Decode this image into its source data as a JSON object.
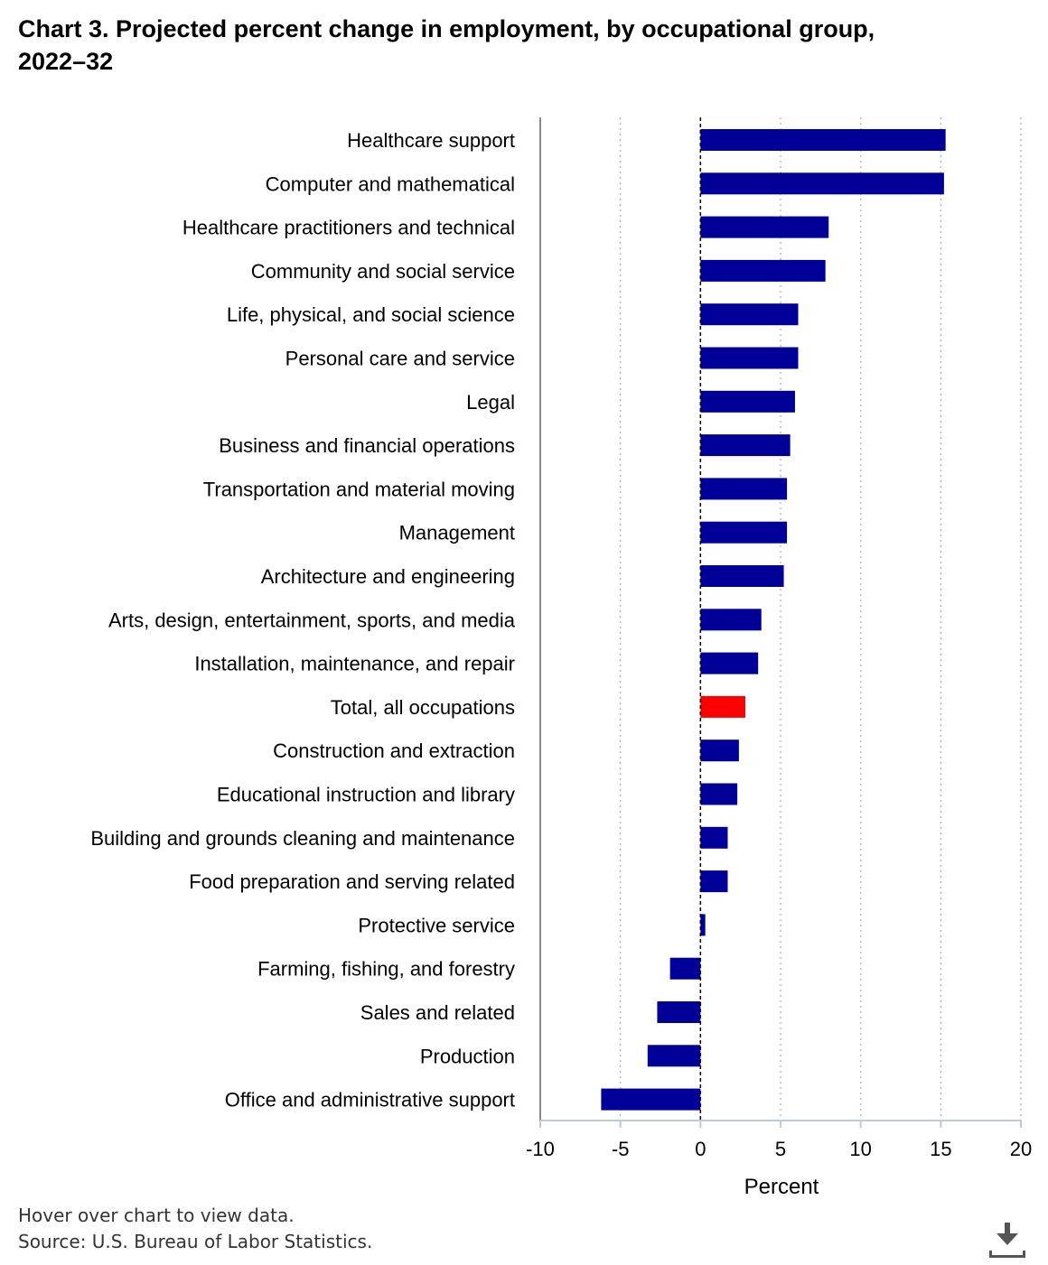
{
  "page": {
    "title": "Chart 3. Projected percent change in employment, by occupational group, 2022–32",
    "hover_note": "Hover over chart to view data.",
    "source_note": "Source: U.S. Bureau of Labor Statistics.",
    "download_icon": "download-icon"
  },
  "colors": {
    "bar": "#000099",
    "highlight": "#ff0000",
    "grid": "#bbbbbb",
    "axis": "#888888",
    "zero_line": "#000000"
  },
  "chart_data": {
    "type": "bar",
    "orientation": "horizontal",
    "title": "Chart 3. Projected percent change in employment, by occupational group, 2022–32",
    "xlabel": "Percent",
    "ylabel": "",
    "xlim": [
      -10,
      20
    ],
    "xticks": [
      -10,
      -5,
      0,
      5,
      10,
      15,
      20
    ],
    "grid": "vertical dotted",
    "highlight_category": "Total, all occupations",
    "categories": [
      "Healthcare support",
      "Computer and mathematical",
      "Healthcare practitioners and technical",
      "Community and social service",
      "Life, physical, and social science",
      "Personal care and service",
      "Legal",
      "Business and financial operations",
      "Transportation and material moving",
      "Management",
      "Architecture and engineering",
      "Arts, design, entertainment, sports, and media",
      "Installation, maintenance, and repair",
      "Total, all occupations",
      "Construction and extraction",
      "Educational instruction and library",
      "Building and grounds cleaning and maintenance",
      "Food preparation and serving related",
      "Protective service",
      "Farming, fishing, and forestry",
      "Sales and related",
      "Production",
      "Office and administrative support"
    ],
    "values": [
      15.3,
      15.2,
      8.0,
      7.8,
      6.1,
      6.1,
      5.9,
      5.6,
      5.4,
      5.4,
      5.2,
      3.8,
      3.6,
      2.8,
      2.4,
      2.3,
      1.7,
      1.7,
      0.3,
      -1.9,
      -2.7,
      -3.3,
      -6.2
    ]
  }
}
